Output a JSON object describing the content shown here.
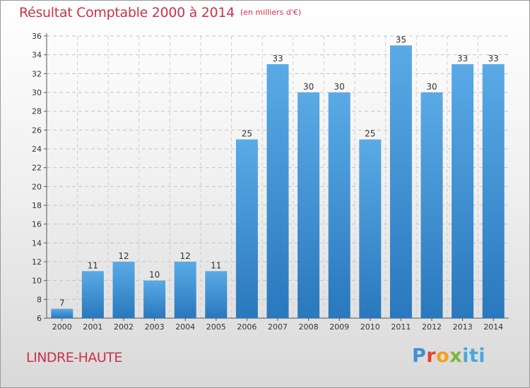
{
  "header": {
    "title": "Résultat Comptable 2000 à 2014",
    "subtitle": "(en milliers d'€)"
  },
  "commune": "LINDRE-HAUTE",
  "logo": {
    "parts": [
      "P",
      "r",
      "o",
      "x",
      "iti"
    ]
  },
  "colors": {
    "accent": "#c8334a",
    "bar_light": "#5aaae6",
    "bar_dark": "#2a78bd"
  },
  "chart_data": {
    "type": "bar",
    "title": "Résultat Comptable 2000 à 2014",
    "subtitle": "(en milliers d'€)",
    "xlabel": "",
    "ylabel": "",
    "categories": [
      "2000",
      "2001",
      "2002",
      "2003",
      "2004",
      "2005",
      "2006",
      "2007",
      "2008",
      "2009",
      "2010",
      "2011",
      "2012",
      "2013",
      "2014"
    ],
    "values": [
      7,
      11,
      12,
      10,
      12,
      11,
      25,
      33,
      30,
      30,
      25,
      35,
      30,
      33,
      33
    ],
    "ylim": [
      6,
      36
    ],
    "yticks": [
      6,
      8,
      10,
      12,
      14,
      16,
      18,
      20,
      22,
      24,
      26,
      28,
      30,
      32,
      34,
      36
    ],
    "grid": true,
    "legend": "none"
  }
}
